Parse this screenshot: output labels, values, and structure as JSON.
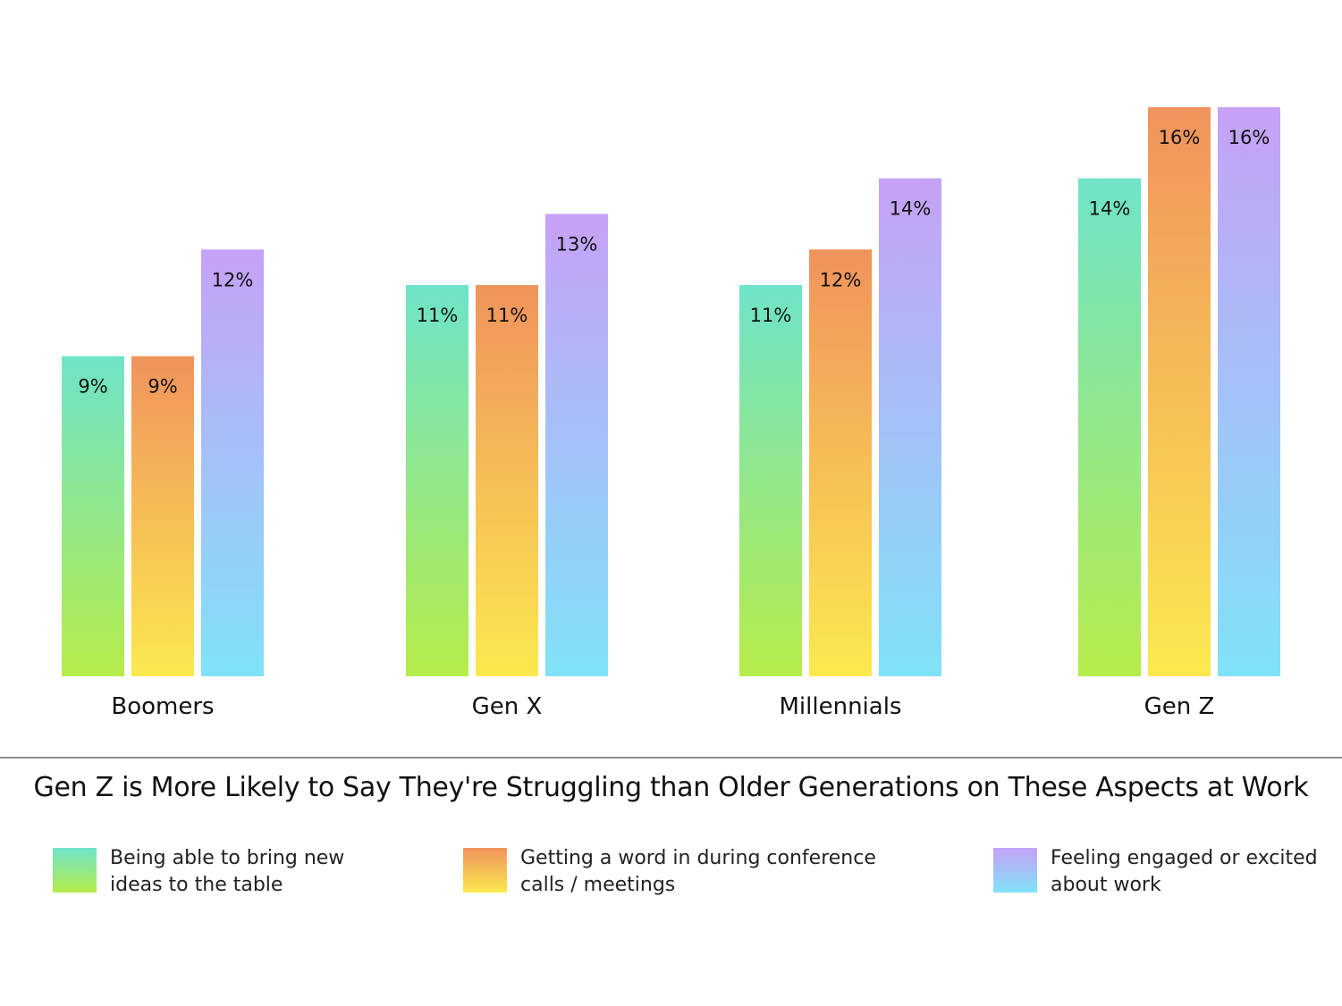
{
  "chart_data": {
    "type": "bar",
    "title": "Gen Z is More Likely to Say They're Struggling than Older Generations on These Aspects at Work",
    "categories": [
      "Boomers",
      "Gen X",
      "Millennials",
      "Gen Z"
    ],
    "series": [
      {
        "name": "Being able to bring new ideas to the table",
        "values": [
          9,
          11,
          11,
          14
        ],
        "labels": [
          "9%",
          "11%",
          "11%",
          "14%"
        ],
        "gradient": [
          "#6fe3c9",
          "#b6ec4a"
        ]
      },
      {
        "name": "Getting a word in during conference calls / meetings",
        "values": [
          9,
          11,
          12,
          16
        ],
        "labels": [
          "9%",
          "11%",
          "12%",
          "16%"
        ],
        "gradient": [
          "#f0935d",
          "#fbe94f"
        ]
      },
      {
        "name": "Feeling engaged or excited about work",
        "values": [
          12,
          13,
          14,
          16
        ],
        "labels": [
          "12%",
          "13%",
          "14%",
          "16%"
        ],
        "gradient": [
          "#c6a1f7",
          "#80e2f7"
        ]
      }
    ],
    "ylim": [
      0,
      16
    ],
    "unit": "%",
    "grid": false,
    "y_axis_shown": false,
    "legend_position": "bottom"
  },
  "legend": {
    "items": [
      {
        "line1": "Being able to bring new",
        "line2": "ideas to the table"
      },
      {
        "line1": "Getting a word in during conference",
        "line2": "calls / meetings"
      },
      {
        "line1": "Feeling engaged or excited",
        "line2": "about work"
      }
    ]
  }
}
